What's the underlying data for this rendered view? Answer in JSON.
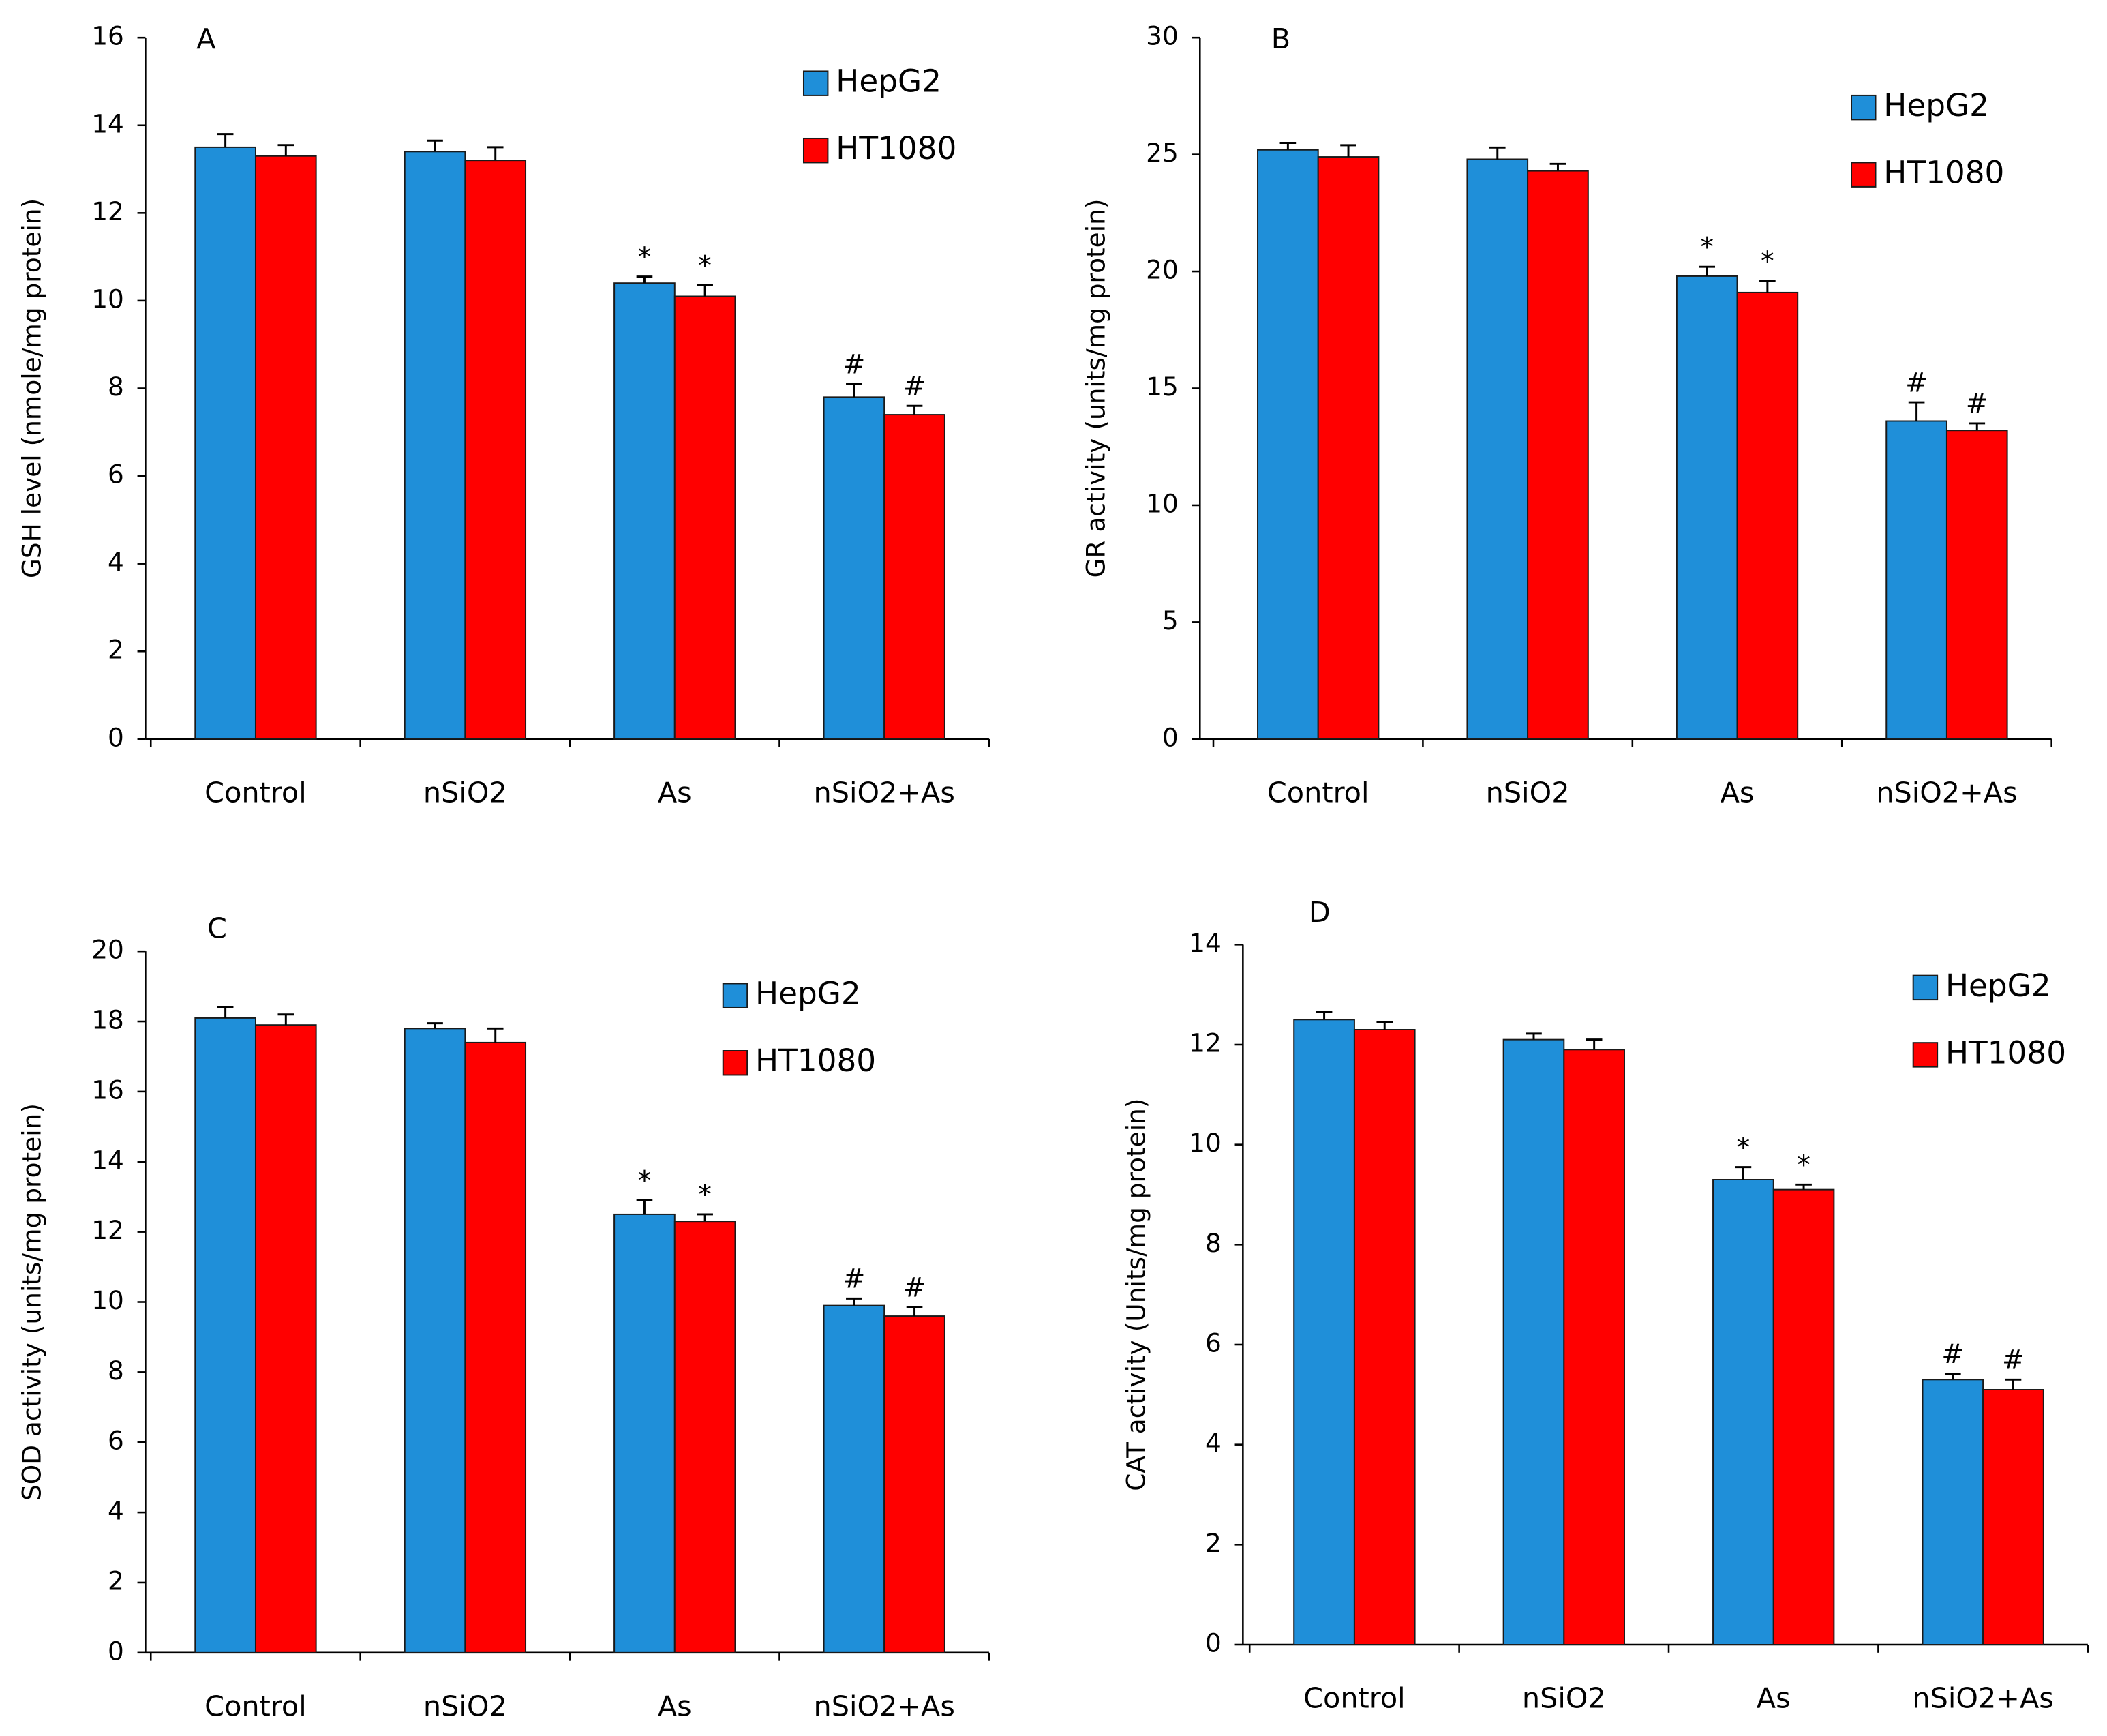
{
  "chart_data": [
    {
      "type": "bar",
      "panel_label": "A",
      "y_label": "GSH level (nmole/mg protein)",
      "categories": [
        "Control",
        "nSiO2",
        "As",
        "nSiO2+As"
      ],
      "series": [
        {
          "name": "HepG2",
          "color": "#1f8fd9",
          "values": [
            13.5,
            13.4,
            10.4,
            7.8
          ],
          "errors": [
            0.3,
            0.25,
            0.15,
            0.3
          ],
          "annotations": [
            null,
            null,
            "*",
            "#"
          ]
        },
        {
          "name": "HT1080",
          "color": "#ff0000",
          "values": [
            13.3,
            13.2,
            10.1,
            7.4
          ],
          "errors": [
            0.25,
            0.3,
            0.25,
            0.2
          ],
          "annotations": [
            null,
            null,
            "*",
            "#"
          ]
        }
      ],
      "ylim": [
        0,
        16
      ],
      "yticks": [
        0,
        2,
        4,
        6,
        8,
        10,
        12,
        14,
        16
      ],
      "legend": "top-right"
    },
    {
      "type": "bar",
      "panel_label": "B",
      "y_label": "GR activity (units/mg protein)",
      "categories": [
        "Control",
        "nSiO2",
        "As",
        "nSiO2+As"
      ],
      "series": [
        {
          "name": "HepG2",
          "color": "#1f8fd9",
          "values": [
            25.2,
            24.8,
            19.8,
            13.6
          ],
          "errors": [
            0.3,
            0.5,
            0.4,
            0.8
          ],
          "annotations": [
            null,
            null,
            "*",
            "#"
          ]
        },
        {
          "name": "HT1080",
          "color": "#ff0000",
          "values": [
            24.9,
            24.3,
            19.1,
            13.2
          ],
          "errors": [
            0.5,
            0.3,
            0.5,
            0.3
          ],
          "annotations": [
            null,
            null,
            "*",
            "#"
          ]
        }
      ],
      "ylim": [
        0,
        30
      ],
      "yticks": [
        0,
        5,
        10,
        15,
        20,
        25,
        30
      ],
      "legend": "top-right"
    },
    {
      "type": "bar",
      "panel_label": "C",
      "y_label": "SOD activity (units/mg protein)",
      "categories": [
        "Control",
        "nSiO2",
        "As",
        "nSiO2+As"
      ],
      "series": [
        {
          "name": "HepG2",
          "color": "#1f8fd9",
          "values": [
            18.1,
            17.8,
            12.5,
            9.9
          ],
          "errors": [
            0.3,
            0.15,
            0.4,
            0.2
          ],
          "annotations": [
            null,
            null,
            "*",
            "#"
          ]
        },
        {
          "name": "HT1080",
          "color": "#ff0000",
          "values": [
            17.9,
            17.4,
            12.3,
            9.6
          ],
          "errors": [
            0.3,
            0.4,
            0.2,
            0.25
          ],
          "annotations": [
            null,
            null,
            "*",
            "#"
          ]
        }
      ],
      "ylim": [
        0,
        20
      ],
      "yticks": [
        0,
        2,
        4,
        6,
        8,
        10,
        12,
        14,
        16,
        18,
        20
      ],
      "legend": "top-right"
    },
    {
      "type": "bar",
      "panel_label": "D",
      "y_label": "CAT activity (Units/mg protein)",
      "categories": [
        "Control",
        "nSiO2",
        "As",
        "nSiO2+As"
      ],
      "series": [
        {
          "name": "HepG2",
          "color": "#1f8fd9",
          "values": [
            12.5,
            12.1,
            9.3,
            5.3
          ],
          "errors": [
            0.15,
            0.12,
            0.25,
            0.12
          ],
          "annotations": [
            null,
            null,
            "*",
            "#"
          ]
        },
        {
          "name": "HT1080",
          "color": "#ff0000",
          "values": [
            12.3,
            11.9,
            9.1,
            5.1
          ],
          "errors": [
            0.15,
            0.2,
            0.1,
            0.2
          ],
          "annotations": [
            null,
            null,
            "*",
            "#"
          ]
        }
      ],
      "ylim": [
        0,
        14
      ],
      "yticks": [
        0,
        2,
        4,
        6,
        8,
        10,
        12,
        14
      ],
      "legend": "top-right"
    }
  ]
}
